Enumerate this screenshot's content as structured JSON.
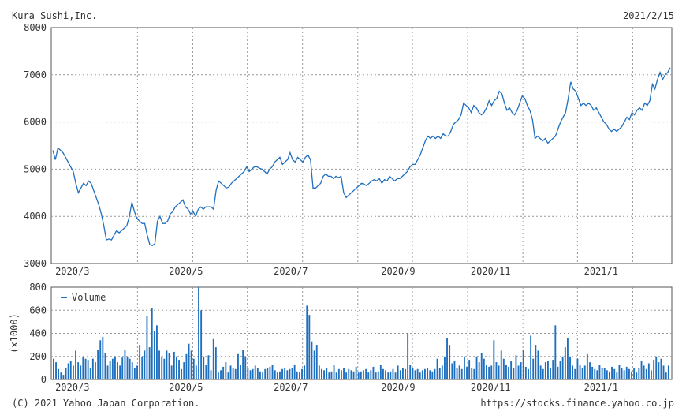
{
  "header": {
    "title": "Kura Sushi,Inc.",
    "date": "2021/2/15"
  },
  "footer": {
    "copyright": "(C) 2021 Yahoo Japan Corporation.",
    "url": "https://stocks.finance.yahoo.co.jp"
  },
  "colors": {
    "line": "#1f6fbf",
    "grid": "#999999",
    "frame": "#555555"
  },
  "chart_data": [
    {
      "type": "line",
      "title": "Kura Sushi,Inc.",
      "ylim": [
        3000,
        8000
      ],
      "yticks": [
        "3000",
        "4000",
        "5000",
        "6000",
        "7000",
        "8000"
      ],
      "xticks": [
        "2020/3",
        "2020/5",
        "2020/7",
        "2020/9",
        "2020/11",
        "2021/1"
      ],
      "grid": true,
      "series": [
        {
          "values": [
            5400,
            5200,
            5450,
            5400,
            5350,
            5250,
            5150,
            5050,
            4950,
            4700,
            4500,
            4600,
            4700,
            4650,
            4750,
            4700,
            4550,
            4400,
            4250,
            4050,
            3800,
            3500,
            3520,
            3500,
            3600,
            3700,
            3650,
            3700,
            3750,
            3800,
            4000,
            4300,
            4100,
            3950,
            3900,
            3850,
            3850,
            3600,
            3400,
            3380,
            3420,
            3900,
            4000,
            3850,
            3850,
            3900,
            4050,
            4100,
            4200,
            4250,
            4300,
            4350,
            4200,
            4150,
            4050,
            4100,
            4000,
            4150,
            4200,
            4150,
            4200,
            4200,
            4200,
            4150,
            4550,
            4750,
            4700,
            4650,
            4600,
            4620,
            4700,
            4750,
            4800,
            4850,
            4900,
            4950,
            5050,
            4950,
            5000,
            5050,
            5050,
            5020,
            5000,
            4950,
            4900,
            5000,
            5050,
            5150,
            5200,
            5250,
            5100,
            5150,
            5200,
            5350,
            5200,
            5150,
            5250,
            5200,
            5150,
            5250,
            5300,
            5200,
            4600,
            4600,
            4650,
            4700,
            4850,
            4900,
            4850,
            4850,
            4800,
            4850,
            4820,
            4850,
            4500,
            4400,
            4450,
            4500,
            4550,
            4600,
            4650,
            4700,
            4680,
            4650,
            4700,
            4750,
            4780,
            4750,
            4800,
            4700,
            4780,
            4750,
            4850,
            4800,
            4750,
            4800,
            4800,
            4850,
            4900,
            4950,
            5050,
            5100,
            5100,
            5200,
            5300,
            5450,
            5600,
            5700,
            5650,
            5700,
            5650,
            5700,
            5650,
            5750,
            5700,
            5700,
            5800,
            5950,
            6000,
            6050,
            6150,
            6400,
            6350,
            6300,
            6200,
            6350,
            6300,
            6200,
            6150,
            6200,
            6300,
            6450,
            6350,
            6450,
            6500,
            6650,
            6600,
            6400,
            6250,
            6300,
            6200,
            6150,
            6250,
            6400,
            6550,
            6500,
            6350,
            6250,
            6050,
            5650,
            5700,
            5650,
            5600,
            5650,
            5550,
            5600,
            5650,
            5700,
            5850,
            6000,
            6100,
            6200,
            6500,
            6850,
            6700,
            6650,
            6500,
            6350,
            6400,
            6350,
            6400,
            6350,
            6250,
            6300,
            6200,
            6100,
            6000,
            5950,
            5850,
            5800,
            5850,
            5800,
            5850,
            5900,
            6000,
            6100,
            6050,
            6200,
            6150,
            6250,
            6300,
            6250,
            6400,
            6350,
            6450,
            6800,
            6700,
            6900,
            7050,
            6900,
            7000,
            7050,
            7150
          ]
        }
      ]
    },
    {
      "type": "bar",
      "title": "",
      "ylabel": "(x1000)",
      "ylim": [
        0,
        800
      ],
      "yticks": [
        "0",
        "200",
        "400",
        "600",
        "800"
      ],
      "xticks": [
        "2020/3",
        "2020/5",
        "2020/7",
        "2020/9",
        "2020/11",
        "2021/1"
      ],
      "legend": "Volume",
      "legend_position": "top-left",
      "grid": true,
      "series": [
        {
          "name": "Volume",
          "values": [
            180,
            150,
            90,
            60,
            40,
            100,
            140,
            160,
            120,
            250,
            150,
            120,
            200,
            180,
            170,
            100,
            180,
            150,
            260,
            340,
            370,
            230,
            120,
            160,
            180,
            200,
            150,
            120,
            190,
            260,
            200,
            180,
            150,
            100,
            120,
            300,
            200,
            250,
            550,
            280,
            620,
            420,
            470,
            250,
            200,
            180,
            250,
            230,
            120,
            240,
            200,
            170,
            90,
            150,
            220,
            310,
            250,
            180,
            120,
            800,
            600,
            200,
            130,
            210,
            80,
            350,
            280,
            60,
            80,
            110,
            150,
            60,
            120,
            100,
            90,
            220,
            130,
            260,
            200,
            100,
            80,
            90,
            120,
            100,
            70,
            60,
            90,
            100,
            110,
            130,
            80,
            60,
            70,
            90,
            100,
            80,
            90,
            100,
            130,
            70,
            60,
            90,
            120,
            640,
            560,
            330,
            250,
            300,
            120,
            90,
            80,
            100,
            60,
            70,
            130,
            60,
            90,
            80,
            100,
            60,
            90,
            80,
            70,
            110,
            60,
            70,
            80,
            90,
            60,
            80,
            110,
            60,
            70,
            130,
            90,
            80,
            60,
            70,
            90,
            60,
            120,
            80,
            100,
            90,
            400,
            130,
            100,
            80,
            90,
            60,
            80,
            90,
            100,
            80,
            70,
            90,
            180,
            100,
            120,
            200,
            360,
            300,
            140,
            160,
            100,
            120,
            90,
            200,
            110,
            170,
            100,
            90,
            200,
            150,
            230,
            180,
            130,
            110,
            120,
            340,
            150,
            120,
            250,
            180,
            130,
            110,
            160,
            100,
            210,
            120,
            150,
            260,
            110,
            90,
            380,
            180,
            300,
            250,
            120,
            90,
            150,
            160,
            100,
            170,
            470,
            110,
            160,
            200,
            280,
            360,
            200,
            120,
            90,
            180,
            130,
            100,
            120,
            220,
            150,
            110,
            90,
            80,
            130,
            100,
            100,
            80,
            70,
            110,
            90,
            60,
            130,
            100,
            80,
            110,
            90,
            70,
            100,
            60,
            100,
            160,
            120,
            90,
            140,
            80,
            170,
            200,
            150,
            180,
            120,
            60,
            120
          ]
        }
      ]
    }
  ]
}
